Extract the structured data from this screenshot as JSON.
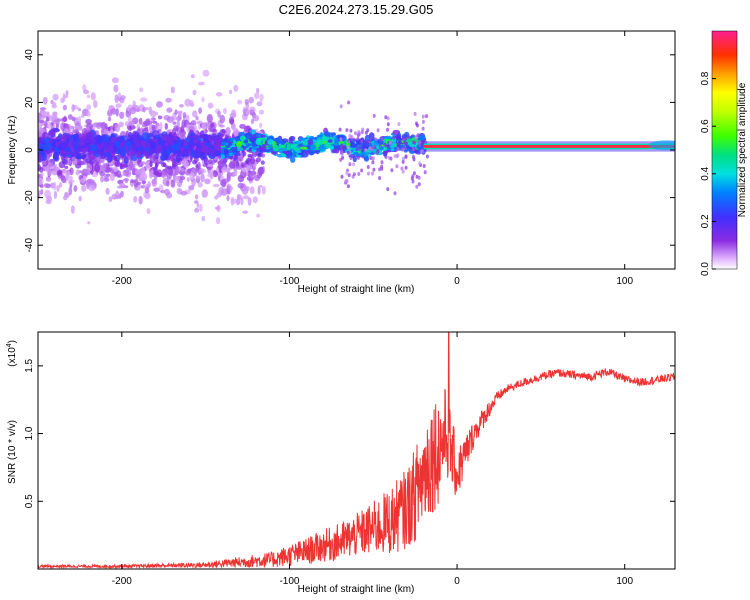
{
  "title": "C2E6.2024.273.15.29.G05",
  "chart_data": [
    {
      "type": "heatmap",
      "name": "spectrogram",
      "xlabel": "Height of straight line (km)",
      "ylabel": "Frequency (Hz)",
      "xlim": [
        -250,
        130
      ],
      "ylim": [
        -50,
        50
      ],
      "xticks": [
        -200,
        -100,
        0,
        100
      ],
      "yticks": [
        -40,
        -20,
        0,
        20,
        40
      ],
      "xtick_labels": [
        "-200",
        "-100",
        "0",
        "100"
      ],
      "ytick_labels": [
        "-40",
        "-20",
        "0",
        "20",
        "40"
      ],
      "colorbar": {
        "label": "Normalized spectral amplitude",
        "range": [
          0,
          1
        ],
        "ticks": [
          0.0,
          0.2,
          0.4,
          0.6,
          0.8
        ],
        "tick_labels": [
          "0.0",
          "0.2",
          "0.4",
          "0.6",
          "0.8"
        ],
        "colormap": "rainbow (white-purple-blue-cyan-green-yellow-red)"
      },
      "features": [
        {
          "x_range": [
            -250,
            -140
          ],
          "description": "broad noisy scatter",
          "frequency_spread_hz": 50,
          "amplitude": 0.15
        },
        {
          "x_range": [
            -140,
            -20
          ],
          "description": "narrowing band near 2 Hz",
          "frequency_spread_hz": 6,
          "amplitude": 0.5
        },
        {
          "x_range": [
            -20,
            130
          ],
          "description": "stable tone at ~1.5 Hz",
          "frequency_center_hz": 1.5,
          "amplitude": 0.95
        }
      ]
    },
    {
      "type": "line",
      "name": "snr",
      "xlabel": "Height of straight line (km)",
      "ylabel": "SNR (10 * v/v)",
      "scale_label": "(x10",
      "scale_exponent": "4",
      "xlim": [
        -250,
        130
      ],
      "ylim": [
        0,
        1.75
      ],
      "xticks": [
        -200,
        -100,
        0,
        100
      ],
      "yticks": [
        0.5,
        1.0,
        1.5
      ],
      "xtick_labels": [
        "-200",
        "-100",
        "0",
        "100"
      ],
      "ytick_labels": [
        "0.5",
        "1.0",
        "1.5"
      ],
      "color": "#ee3333",
      "x": [
        -250,
        -200,
        -150,
        -130,
        -110,
        -100,
        -90,
        -80,
        -70,
        -60,
        -50,
        -40,
        -30,
        -25,
        -20,
        -15,
        -10,
        -7,
        -5,
        -2,
        0,
        5,
        10,
        15,
        20,
        25,
        30,
        40,
        50,
        60,
        70,
        80,
        90,
        100,
        110,
        120,
        130
      ],
      "y": [
        0.02,
        0.02,
        0.03,
        0.05,
        0.07,
        0.1,
        0.13,
        0.17,
        0.2,
        0.25,
        0.3,
        0.35,
        0.45,
        0.55,
        0.7,
        0.85,
        0.9,
        1.0,
        0.95,
        0.8,
        0.7,
        0.85,
        1.0,
        1.1,
        1.2,
        1.28,
        1.33,
        1.38,
        1.42,
        1.45,
        1.43,
        1.42,
        1.46,
        1.4,
        1.38,
        1.4,
        1.42
      ],
      "noise_amplitude": [
        0.01,
        0.01,
        0.02,
        0.04,
        0.06,
        0.08,
        0.1,
        0.12,
        0.14,
        0.16,
        0.2,
        0.25,
        0.3,
        0.35,
        0.4,
        0.45,
        0.4,
        0.35,
        0.3,
        0.25,
        0.2,
        0.15,
        0.1,
        0.08,
        0.06,
        0.04,
        0.03,
        0.03,
        0.03,
        0.03,
        0.03,
        0.03,
        0.03,
        0.03,
        0.03,
        0.03,
        0.03
      ],
      "peak": {
        "x": -5,
        "y": 1.75
      }
    }
  ]
}
